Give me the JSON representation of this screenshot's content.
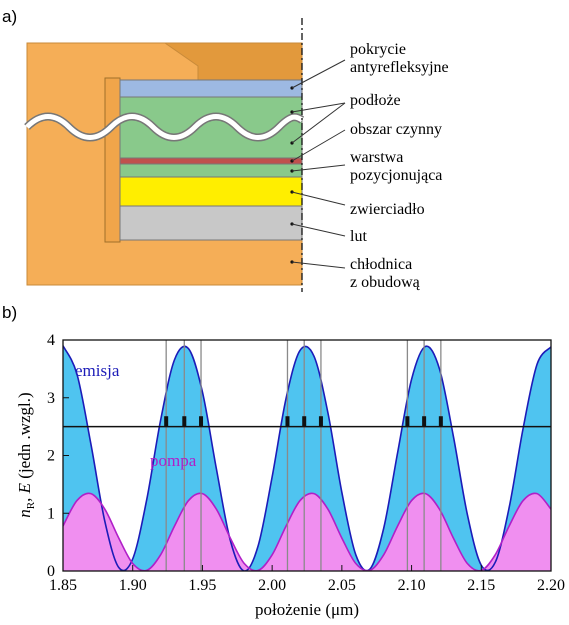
{
  "diagram": {
    "panel_label": "a)",
    "labels": [
      [
        "pokrycie",
        "antyrefleksyjne"
      ],
      [
        "podłoże"
      ],
      [
        "obszar czynny"
      ],
      [
        "warstwa",
        "pozycjonująca"
      ],
      [
        "zwierciadło"
      ],
      [
        "lut"
      ],
      [
        "chłodnica",
        "z obudową"
      ]
    ]
  },
  "chart_data": {
    "type": "line",
    "panel_label": "b)",
    "x_label": "położenie (μm)",
    "y_label": [
      "n",
      "R",
      ", ",
      "E",
      " (jedn .wzgl.)"
    ],
    "xlim": [
      1.85,
      2.2
    ],
    "ylim": [
      0,
      4
    ],
    "xticks": [
      1.85,
      {
        "value": 1.9,
        "label": "1.90"
      },
      1.95,
      {
        "value": 2.0,
        "label": "2.00"
      },
      2.05,
      {
        "value": 2.1,
        "label": "2.10"
      },
      2.15,
      {
        "value": 2.2,
        "label": "2.20"
      }
    ],
    "yticks": [
      0,
      1,
      2,
      3,
      4
    ],
    "x": [
      1.85,
      1.86,
      1.87,
      1.88,
      1.89,
      1.9,
      1.91,
      1.92,
      1.93,
      1.94,
      1.95,
      1.96,
      1.97,
      1.98,
      1.99,
      2.0,
      2.01,
      2.02,
      2.03,
      2.04,
      2.05,
      2.06,
      2.07,
      2.08,
      2.09,
      2.1,
      2.11,
      2.12,
      2.13,
      2.14,
      2.15,
      2.16,
      2.17,
      2.18,
      2.19,
      2.2
    ],
    "series": [
      {
        "name": "emisja",
        "color": "#1c1cb8",
        "fill": "#4fc4f0",
        "values": [
          3.9,
          3.41,
          2.2,
          0.86,
          0.06,
          0.21,
          1.23,
          2.61,
          3.66,
          3.85,
          3.1,
          1.77,
          0.53,
          0.0,
          0.44,
          1.63,
          2.99,
          3.82,
          3.72,
          2.74,
          1.36,
          0.28,
          0.03,
          0.74,
          2.05,
          3.32,
          3.89,
          3.5,
          2.33,
          0.98,
          0.1,
          0.15,
          1.1,
          2.47,
          3.58,
          3.88
        ]
      },
      {
        "name": "pompa",
        "color": "#b020c8",
        "fill": "#f08ff0",
        "values": [
          0.78,
          1.22,
          1.34,
          1.07,
          0.57,
          0.13,
          0.01,
          0.28,
          0.78,
          1.22,
          1.34,
          1.07,
          0.57,
          0.13,
          0.01,
          0.28,
          0.78,
          1.22,
          1.34,
          1.07,
          0.57,
          0.13,
          0.01,
          0.28,
          0.78,
          1.22,
          1.34,
          1.07,
          0.57,
          0.13,
          0.01,
          0.28,
          0.78,
          1.22,
          1.34,
          1.07
        ]
      }
    ],
    "index_level": 2.5,
    "well_level": 2.68,
    "wells": [
      1.924,
      1.937,
      1.949,
      2.011,
      2.023,
      2.035,
      2.097,
      2.109,
      2.121
    ]
  }
}
